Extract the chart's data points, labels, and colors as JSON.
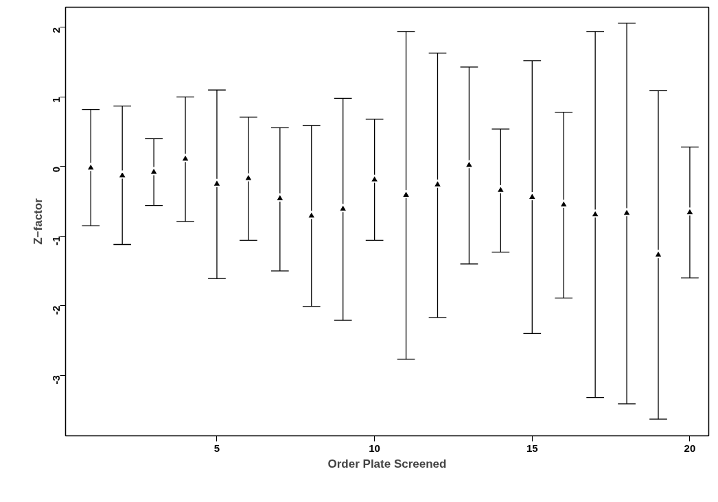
{
  "chart_data": {
    "type": "scatter",
    "xlabel": "Order Plate Screened",
    "ylabel": "Z−factor",
    "x": [
      1,
      2,
      3,
      4,
      5,
      6,
      7,
      8,
      9,
      10,
      11,
      12,
      13,
      14,
      15,
      16,
      17,
      18,
      19,
      20
    ],
    "series": [
      {
        "color": "#000000",
        "values": [
          -0.02,
          -0.13,
          -0.08,
          0.11,
          -0.25,
          -0.17,
          -0.46,
          -0.71,
          -0.61,
          -0.19,
          -0.41,
          -0.26,
          0.02,
          -0.34,
          -0.44,
          -0.55,
          -0.69,
          -0.67,
          -1.27,
          -0.66
        ],
        "errors": [
          [
            -0.85,
            0.82
          ],
          [
            -1.12,
            0.87
          ],
          [
            -0.56,
            0.4
          ],
          [
            -0.79,
            1.0
          ],
          [
            -1.61,
            1.1
          ],
          [
            -1.06,
            0.71
          ],
          [
            -1.5,
            0.56
          ],
          [
            -2.01,
            0.59
          ],
          [
            -2.21,
            0.98
          ],
          [
            -1.06,
            0.68
          ],
          [
            -2.77,
            1.94
          ],
          [
            -2.17,
            1.63
          ],
          [
            -1.4,
            1.43
          ],
          [
            -1.23,
            0.54
          ],
          [
            -2.4,
            1.52
          ],
          [
            -1.89,
            0.78
          ],
          [
            -3.32,
            1.94
          ],
          [
            -3.41,
            2.06
          ],
          [
            -3.63,
            1.09
          ],
          [
            -1.6,
            0.28
          ]
        ]
      }
    ],
    "xlim": [
      0.2,
      20.6
    ],
    "ylim": [
      -3.87,
      2.29
    ],
    "xticks": [
      5,
      10,
      15,
      20
    ],
    "yticks": [
      -3,
      -2,
      -1,
      0,
      1,
      2
    ],
    "marker": "triangle",
    "grid": false
  }
}
